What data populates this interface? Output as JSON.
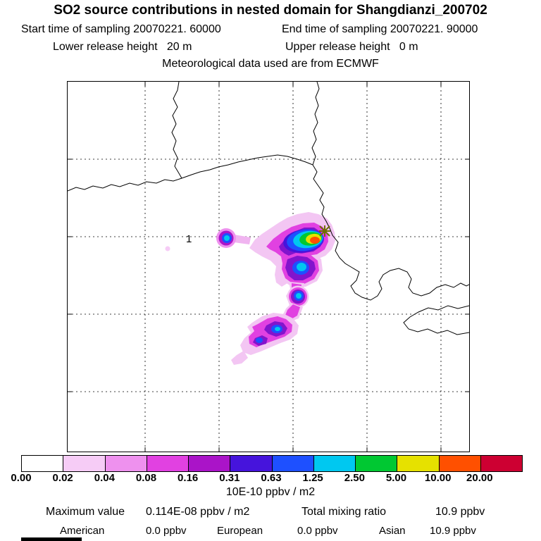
{
  "header": {
    "title": "SO2 source contributions in nested domain for Shangdianzi_200702",
    "start_line": "Start time of sampling 20070221. 60000",
    "end_line": "End time of sampling 20070221. 90000",
    "lower_line": "Lower release height   20 m",
    "upper_line": "Upper release height   0 m",
    "met_line": "Meteorological data used are from ECMWF"
  },
  "map": {
    "site_label": "1"
  },
  "colorbar": {
    "labels": [
      "0.00",
      "0.02",
      "0.04",
      "0.08",
      "0.16",
      "0.31",
      "0.63",
      "1.25",
      "2.50",
      "5.00",
      "10.00",
      "20.00"
    ],
    "colors": [
      "#ffffff",
      "#f6ccf6",
      "#ee91ee",
      "#e141e1",
      "#aa14c8",
      "#4614dc",
      "#1e50ff",
      "#00c8f0",
      "#00c832",
      "#e6e100",
      "#ff5000",
      "#cd0032"
    ],
    "units": "10E-10 ppbv / m2"
  },
  "footer": {
    "max_label": "Maximum value",
    "max_value": "0.114E-08 ppbv / m2",
    "mixing_label": "Total mixing ratio",
    "mixing_value": "10.9 ppbv",
    "regions": [
      {
        "name": "American",
        "value": "0.0 ppbv"
      },
      {
        "name": "European",
        "value": "0.0 ppbv"
      },
      {
        "name": "Asian",
        "value": "10.9 ppbv"
      }
    ]
  },
  "chart_data": {
    "type": "heatmap",
    "title": "SO2 source contributions in nested domain for Shangdianzi_200702",
    "receptor_site": "Shangdianzi",
    "sampling": {
      "start": "20070221. 60000",
      "end": "20070221. 90000"
    },
    "release_height_m": {
      "lower": 20,
      "upper": 0
    },
    "meteorology": "ECMWF",
    "units": "10E-10 ppbv / m2",
    "colorbar_bounds": [
      0.0,
      0.02,
      0.04,
      0.08,
      0.16,
      0.31,
      0.63,
      1.25,
      2.5,
      5.0,
      10.0,
      20.0
    ],
    "colorbar_colors": [
      "#ffffff",
      "#f6ccf6",
      "#ee91ee",
      "#e141e1",
      "#aa14c8",
      "#4614dc",
      "#1e50ff",
      "#00c8f0",
      "#00c832",
      "#e6e100",
      "#ff5000",
      "#cd0032"
    ],
    "maximum_value": "0.114E-08 ppbv / m2",
    "total_mixing_ratio_ppbv": 10.9,
    "source_contributions_ppbv": {
      "American": 0.0,
      "European": 0.0,
      "Asian": 10.9
    },
    "plume_peak_bin": "10.00-20.00",
    "map_label": "1",
    "notes": "Concentration plume centered at receptor cross marker, with a secondary blob to the west (label 1) and a tail of weaker values extending to the south-southwest; dashed lat/lon grid over a China/Bohai-Sea coastline map."
  }
}
